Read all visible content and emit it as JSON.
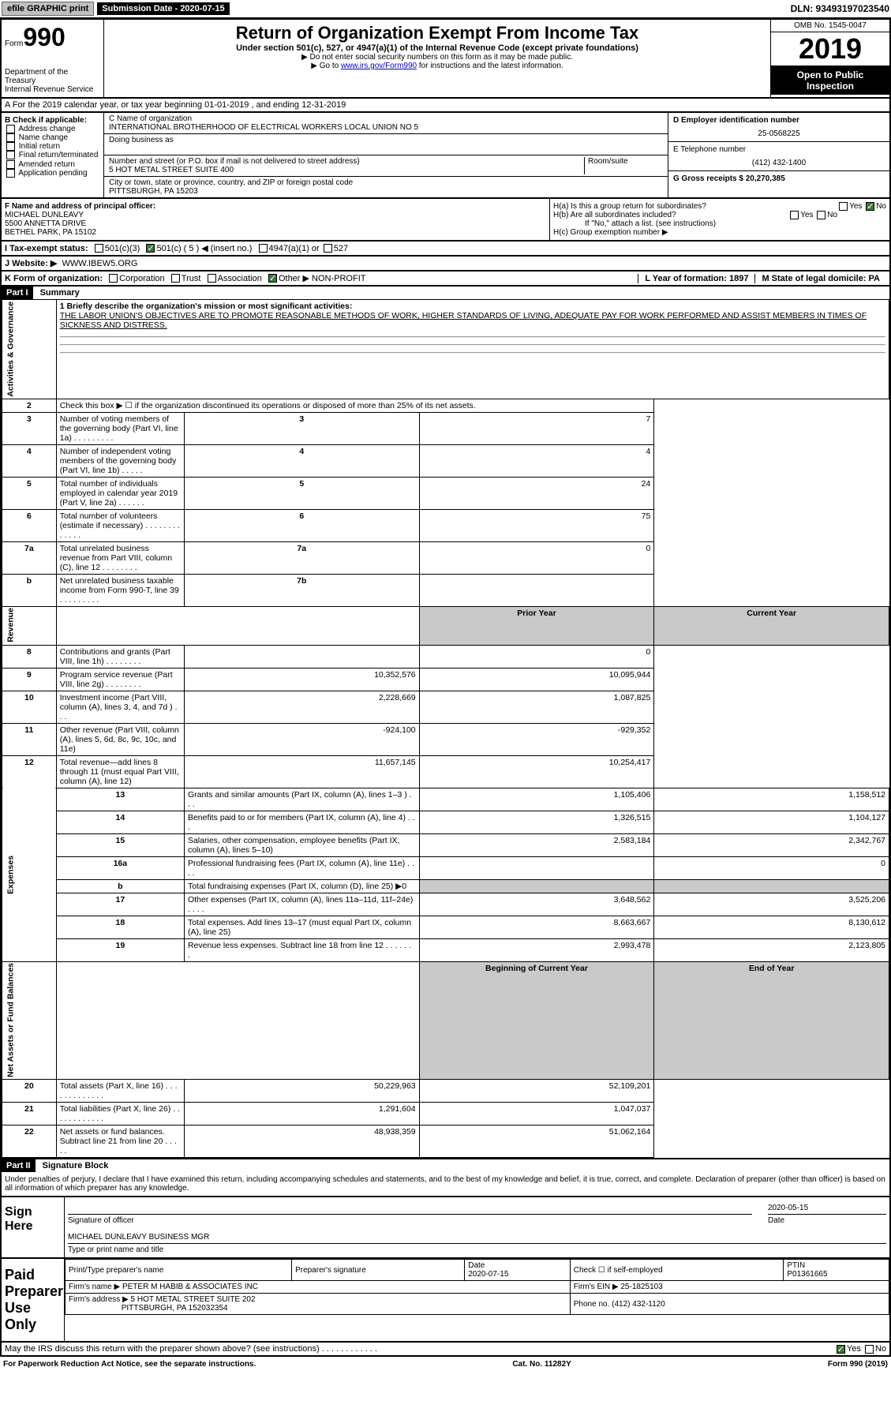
{
  "top": {
    "efile": "efile GRAPHIC print",
    "sub_label": "Submission Date - 2020-07-15",
    "dln": "DLN: 93493197023540"
  },
  "header": {
    "form_prefix": "Form",
    "form_no": "990",
    "dept": "Department of the Treasury\nInternal Revenue Service",
    "title": "Return of Organization Exempt From Income Tax",
    "subtitle": "Under section 501(c), 527, or 4947(a)(1) of the Internal Revenue Code (except private foundations)",
    "note1": "▶ Do not enter social security numbers on this form as it may be made public.",
    "note2_pre": "▶ Go to ",
    "note2_link": "www.irs.gov/Form990",
    "note2_post": " for instructions and the latest information.",
    "omb": "OMB No. 1545-0047",
    "year": "2019",
    "open": "Open to Public Inspection"
  },
  "a": "A For the 2019 calendar year, or tax year beginning 01-01-2019   , and ending 12-31-2019",
  "b": {
    "label": "B Check if applicable:",
    "opts": [
      "Address change",
      "Name change",
      "Initial return",
      "Final return/terminated",
      "Amended return",
      "Application pending"
    ]
  },
  "c": {
    "name_label": "C Name of organization",
    "name": "INTERNATIONAL BROTHERHOOD OF ELECTRICAL WORKERS LOCAL UNION NO 5",
    "dba_label": "Doing business as",
    "addr_label": "Number and street (or P.O. box if mail is not delivered to street address)",
    "room_label": "Room/suite",
    "addr": "5 HOT METAL STREET SUITE 400",
    "city_label": "City or town, state or province, country, and ZIP or foreign postal code",
    "city": "PITTSBURGH, PA  15203"
  },
  "d": {
    "label": "D Employer identification number",
    "ein": "25-0568225"
  },
  "e": {
    "label": "E Telephone number",
    "phone": "(412) 432-1400"
  },
  "g": {
    "label": "G Gross receipts $ 20,270,385"
  },
  "f": {
    "label": "F  Name and address of principal officer:",
    "name": "MICHAEL DUNLEAVY",
    "addr1": "5500 ANNETTA DRIVE",
    "addr2": "BETHEL PARK, PA  15102"
  },
  "h": {
    "a": "H(a)  Is this a group return for subordinates?",
    "b": "H(b)  Are all subordinates included?",
    "note": "If \"No,\" attach a list. (see instructions)",
    "c": "H(c)  Group exemption number ▶"
  },
  "i": {
    "label": "I  Tax-exempt status:",
    "o1": "501(c)(3)",
    "o2": "501(c) ( 5 ) ◀ (insert no.)",
    "o3": "4947(a)(1) or",
    "o4": "527"
  },
  "j": {
    "label": "J  Website: ▶",
    "url": "WWW.IBEW5.ORG"
  },
  "k": {
    "label": "K Form of organization:",
    "opts": [
      "Corporation",
      "Trust",
      "Association",
      "Other ▶"
    ],
    "other": "NON-PROFIT"
  },
  "l": {
    "label": "L Year of formation: 1897"
  },
  "m": {
    "label": "M State of legal domicile: PA"
  },
  "part1": {
    "hdr": "Part I",
    "title": "Summary",
    "q1": "1  Briefly describe the organization's mission or most significant activities:",
    "mission": "THE LABOR UNION'S OBJECTIVES ARE TO PROMOTE REASONABLE METHODS OF WORK, HIGHER STANDARDS OF LIVING, ADEQUATE PAY FOR WORK PERFORMED AND ASSIST MEMBERS IN TIMES OF SICKNESS AND DISTRESS.",
    "rows_gov": [
      {
        "n": "2",
        "t": "Check this box ▶ ☐ if the organization discontinued its operations or disposed of more than 25% of its net assets.",
        "box": "",
        "v": ""
      },
      {
        "n": "3",
        "t": "Number of voting members of the governing body (Part VI, line 1a)  .  .  .  .  .  .  .  .  .",
        "box": "3",
        "v": "7"
      },
      {
        "n": "4",
        "t": "Number of independent voting members of the governing body (Part VI, line 1b)  .  .  .  .  .",
        "box": "4",
        "v": "4"
      },
      {
        "n": "5",
        "t": "Total number of individuals employed in calendar year 2019 (Part V, line 2a)  .  .  .  .  .  .",
        "box": "5",
        "v": "24"
      },
      {
        "n": "6",
        "t": "Total number of volunteers (estimate if necessary)  .  .  .  .  .  .  .  .  .  .  .  .  .",
        "box": "6",
        "v": "75"
      },
      {
        "n": "7a",
        "t": "Total unrelated business revenue from Part VIII, column (C), line 12  .  .  .  .  .  .  .  .",
        "box": "7a",
        "v": "0"
      },
      {
        "n": "b",
        "t": "Net unrelated business taxable income from Form 990-T, line 39  .  .  .  .  .  .  .  .  .",
        "box": "7b",
        "v": ""
      }
    ],
    "py": "Prior Year",
    "cy": "Current Year",
    "rows_rev": [
      {
        "n": "8",
        "t": "Contributions and grants (Part VIII, line 1h)  .  .  .  .  .  .  .  .",
        "py": "",
        "cy": "0"
      },
      {
        "n": "9",
        "t": "Program service revenue (Part VIII, line 2g)  .  .  .  .  .  .  .  .",
        "py": "10,352,576",
        "cy": "10,095,944"
      },
      {
        "n": "10",
        "t": "Investment income (Part VIII, column (A), lines 3, 4, and 7d )  .  .  .",
        "py": "2,228,669",
        "cy": "1,087,825"
      },
      {
        "n": "11",
        "t": "Other revenue (Part VIII, column (A), lines 5, 6d, 8c, 9c, 10c, and 11e)",
        "py": "-924,100",
        "cy": "-929,352"
      },
      {
        "n": "12",
        "t": "Total revenue—add lines 8 through 11 (must equal Part VIII, column (A), line 12)",
        "py": "11,657,145",
        "cy": "10,254,417"
      }
    ],
    "rows_exp": [
      {
        "n": "13",
        "t": "Grants and similar amounts (Part IX, column (A), lines 1–3 )  .  .  .",
        "py": "1,105,406",
        "cy": "1,158,512"
      },
      {
        "n": "14",
        "t": "Benefits paid to or for members (Part IX, column (A), line 4)  .  .  .",
        "py": "1,326,515",
        "cy": "1,104,127"
      },
      {
        "n": "15",
        "t": "Salaries, other compensation, employee benefits (Part IX, column (A), lines 5–10)",
        "py": "2,583,184",
        "cy": "2,342,767"
      },
      {
        "n": "16a",
        "t": "Professional fundraising fees (Part IX, column (A), line 11e)  .  .  .  .",
        "py": "",
        "cy": "0"
      },
      {
        "n": "b",
        "t": "Total fundraising expenses (Part IX, column (D), line 25) ▶0",
        "py": "gray",
        "cy": "gray"
      },
      {
        "n": "17",
        "t": "Other expenses (Part IX, column (A), lines 11a–11d, 11f–24e)  .  .  .  .",
        "py": "3,648,562",
        "cy": "3,525,206"
      },
      {
        "n": "18",
        "t": "Total expenses. Add lines 13–17 (must equal Part IX, column (A), line 25)",
        "py": "8,663,667",
        "cy": "8,130,612"
      },
      {
        "n": "19",
        "t": "Revenue less expenses. Subtract line 18 from line 12 .  .  .  .  .  .  .",
        "py": "2,993,478",
        "cy": "2,123,805"
      }
    ],
    "boy": "Beginning of Current Year",
    "eoy": "End of Year",
    "rows_net": [
      {
        "n": "20",
        "t": "Total assets (Part X, line 16) .  .  .  .  .  .  .  .  .  .  .  .  .",
        "py": "50,229,963",
        "cy": "52,109,201"
      },
      {
        "n": "21",
        "t": "Total liabilities (Part X, line 26) .  .  .  .  .  .  .  .  .  .  .  .",
        "py": "1,291,604",
        "cy": "1,047,037"
      },
      {
        "n": "22",
        "t": "Net assets or fund balances. Subtract line 21 from line 20 .  .  .  .  .",
        "py": "48,938,359",
        "cy": "51,062,164"
      }
    ],
    "v_gov": "Activities & Governance",
    "v_rev": "Revenue",
    "v_exp": "Expenses",
    "v_net": "Net Assets or Fund Balances"
  },
  "part2": {
    "hdr": "Part II",
    "title": "Signature Block",
    "decl": "Under penalties of perjury, I declare that I have examined this return, including accompanying schedules and statements, and to the best of my knowledge and belief, it is true, correct, and complete. Declaration of preparer (other than officer) is based on all information of which preparer has any knowledge.",
    "sign": "Sign Here",
    "sig_officer": "Signature of officer",
    "sig_date": "2020-05-15",
    "sig_date_lbl": "Date",
    "officer": "MICHAEL DUNLEAVY  BUSINESS MGR",
    "officer_lbl": "Type or print name and title",
    "paid": "Paid Preparer Use Only",
    "prep_name_lbl": "Print/Type preparer's name",
    "prep_sig_lbl": "Preparer's signature",
    "prep_date_lbl": "Date",
    "prep_date": "2020-07-15",
    "self_emp": "Check ☐ if self-employed",
    "ptin_lbl": "PTIN",
    "ptin": "P01361665",
    "firm_lbl": "Firm's name    ▶",
    "firm": "PETER M HABIB & ASSOCIATES INC",
    "firm_ein_lbl": "Firm's EIN ▶",
    "firm_ein": "25-1825103",
    "firm_addr_lbl": "Firm's address ▶",
    "firm_addr1": "5 HOT METAL STREET SUITE 202",
    "firm_addr2": "PITTSBURGH, PA  152032354",
    "firm_phone_lbl": "Phone no.",
    "firm_phone": "(412) 432-1120",
    "discuss": "May the IRS discuss this return with the preparer shown above? (see instructions)  .  .  .  .  .  .  .  .  .  .  .  ."
  },
  "footer": {
    "left": "For Paperwork Reduction Act Notice, see the separate instructions.",
    "mid": "Cat. No. 11282Y",
    "right": "Form 990 (2019)"
  },
  "yn": {
    "yes": "Yes",
    "no": "No"
  }
}
